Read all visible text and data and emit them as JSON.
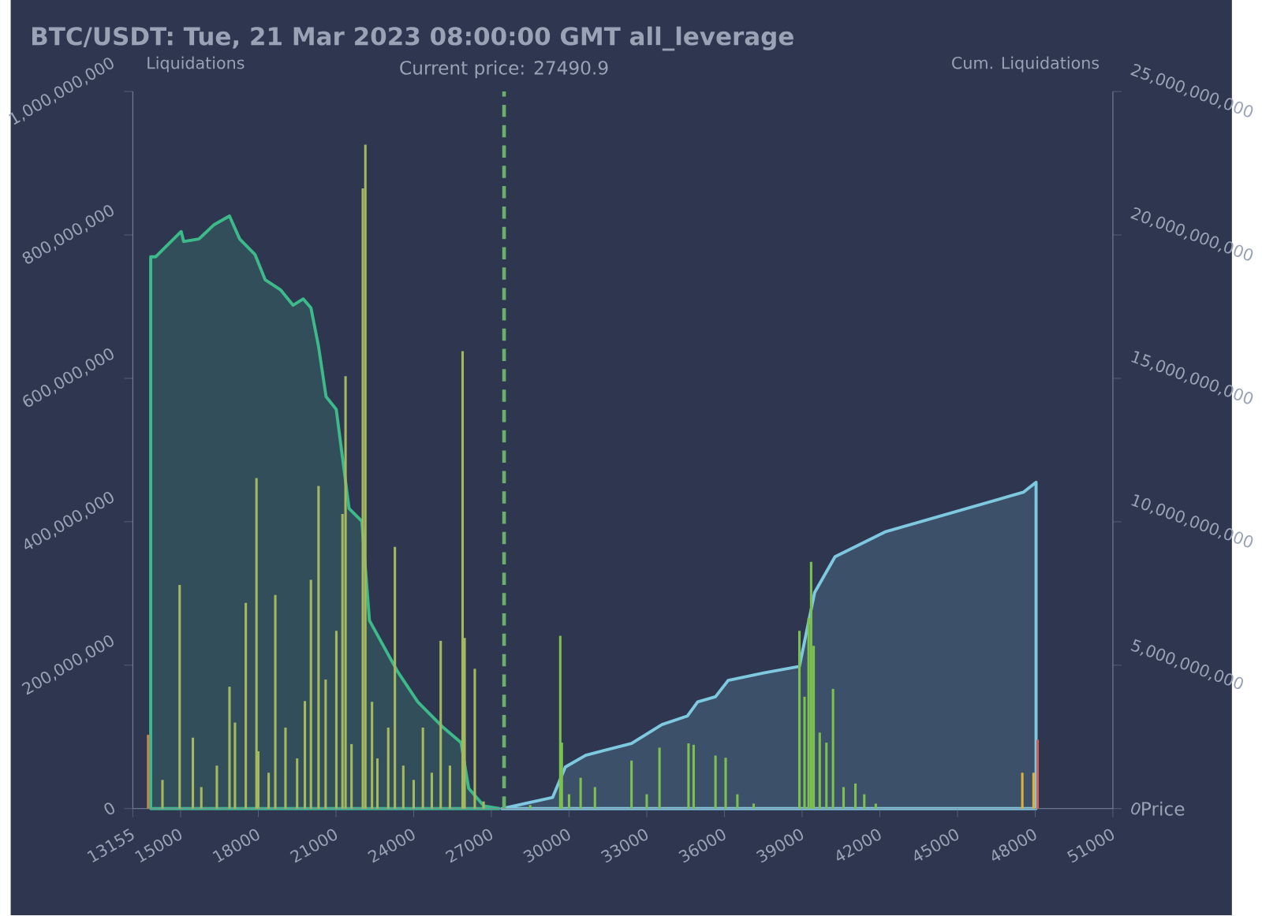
{
  "chart_data": {
    "type": "bar",
    "title": "BTC/USDT: Tue, 21 Mar 2023 08:00:00 GMT all_leverage",
    "xlabel": "Price",
    "ylabel": "Liquidations",
    "y2label": "Cum. Liquidations",
    "xlim": [
      13155,
      51000
    ],
    "xticks": [
      13155,
      15000,
      18000,
      21000,
      24000,
      27000,
      30000,
      33000,
      36000,
      39000,
      42000,
      45000,
      48000,
      51000
    ],
    "ylim": [
      0,
      1000000000
    ],
    "yticks": [
      0,
      {
        "value": 200000000,
        "label": "200,000,000"
      },
      {
        "value": 400000000,
        "label": "400,000,000"
      },
      {
        "value": 600000000,
        "label": "600,000,000"
      },
      {
        "value": 800000000,
        "label": "800,000,000"
      },
      {
        "value": 1000000000,
        "label": "1,000,000,000"
      }
    ],
    "y2lim": [
      0,
      25000000000
    ],
    "y2ticks": [
      0,
      {
        "value": 5000000000,
        "label": "5,000,000,000"
      },
      {
        "value": 10000000000,
        "label": "10,000,000,000"
      },
      {
        "value": 15000000000,
        "label": "15,000,000,000"
      },
      {
        "value": 20000000000,
        "label": "20,000,000,000"
      },
      {
        "value": 25000000000,
        "label": "25,000,000,000"
      }
    ],
    "ref_lines": [
      {
        "axis": "x",
        "value": 27490.9,
        "label": "Current price: 27490.9",
        "color": "#6ab06a",
        "line_style": "dashed"
      }
    ],
    "series": [
      {
        "type": "area",
        "axis": "y2",
        "color": "#3dba8a",
        "x": [
          13845,
          14039,
          15023,
          15120,
          15708,
          16297,
          16887,
          17281,
          17871,
          18264,
          18855,
          19345,
          19738,
          20032,
          20323,
          20618,
          21010,
          21506,
          21997,
          22292,
          23372,
          24158,
          25139,
          25829,
          26123,
          26713,
          27303
        ],
        "values": [
          19240000000,
          19240000000,
          20120000000,
          19770000000,
          19860000000,
          20360000000,
          20660000000,
          19860000000,
          19320000000,
          18440000000,
          18090000000,
          17550000000,
          17770000000,
          17460000000,
          16130000000,
          14360000000,
          13920000000,
          10460000000,
          10020000000,
          6560000000,
          4790000000,
          3720000000,
          2830000000,
          2300000000,
          710000000,
          90000000,
          0
        ]
      },
      {
        "type": "area",
        "axis": "y2",
        "color": "#7ec8e0",
        "x": [
          27402,
          29366,
          29857,
          30643,
          32411,
          33590,
          34573,
          34966,
          35654,
          36145,
          37520,
          38896,
          39485,
          40271,
          42236,
          47543,
          48034
        ],
        "values": [
          0,
          390000000,
          1450000000,
          1860000000,
          2270000000,
          2930000000,
          3230000000,
          3720000000,
          3900000000,
          4470000000,
          4730000000,
          4960000000,
          7540000000,
          8780000000,
          9660000000,
          11030000000,
          11380000000
        ]
      },
      {
        "x": [
          13745,
          14300,
          14963,
          15474,
          15800,
          16400,
          16889,
          17100,
          17517,
          17930,
          18000,
          18400,
          18657,
          19050,
          19500,
          19800,
          20033,
          20327,
          20600,
          21015,
          21251,
          21369,
          21600,
          22037,
          22135,
          22391,
          22600,
          23019,
          23275,
          23600,
          24000,
          24356,
          24700,
          25044,
          25400,
          25889,
          25967,
          26360,
          26700,
          28500,
          29661,
          29720,
          30000,
          30447,
          31000,
          32412,
          33000,
          33493,
          34613,
          34810,
          35655,
          36047,
          36500,
          37128,
          38896,
          39093,
          39250,
          39348,
          39446,
          39680,
          39938,
          40193,
          40600,
          41058,
          41400,
          41844,
          47503,
          47936,
          48093
        ],
        "values": [
          103000000,
          40000000,
          312000000,
          99000000,
          30000000,
          60000000,
          170000000,
          120000000,
          287000000,
          461000000,
          80000000,
          50000000,
          298000000,
          113000000,
          70000000,
          150000000,
          319000000,
          450000000,
          180000000,
          248000000,
          411000000,
          603000000,
          90000000,
          865000000,
          926000000,
          149000000,
          70000000,
          113000000,
          365000000,
          60000000,
          40000000,
          113000000,
          50000000,
          234000000,
          60000000,
          638000000,
          238000000,
          195000000,
          10000000,
          5000000,
          241000000,
          92000000,
          20000000,
          43000000,
          30000000,
          67000000,
          20000000,
          85000000,
          91000000,
          89000000,
          74000000,
          71000000,
          20000000,
          7000000,
          248000000,
          156000000,
          266000000,
          344000000,
          227000000,
          106000000,
          92000000,
          167000000,
          30000000,
          35000000,
          20000000,
          7000000,
          50000000,
          50000000,
          96000000
        ],
        "colors": [
          "#c9824c",
          "#a5b85e",
          "#a5b85e",
          "#a5b85e",
          "#a5b85e",
          "#a5b85e",
          "#a5b85e",
          "#a5b85e",
          "#a5b85e",
          "#a5b85e",
          "#a5b85e",
          "#a5b85e",
          "#a5b85e",
          "#a5b85e",
          "#a5b85e",
          "#a5b85e",
          "#a5b85e",
          "#a5b85e",
          "#a5b85e",
          "#a5b85e",
          "#a5b85e",
          "#a5b85e",
          "#a5b85e",
          "#a5b85e",
          "#a5b85e",
          "#a5b85e",
          "#a5b85e",
          "#a5b85e",
          "#a5b85e",
          "#a5b85e",
          "#a5b85e",
          "#a5b85e",
          "#a5b85e",
          "#a5b85e",
          "#a5b85e",
          "#a5b85e",
          "#a5b85e",
          "#a5b85e",
          "#a5b85e",
          "#7cc050",
          "#7cc050",
          "#7cc050",
          "#7cc050",
          "#7cc050",
          "#7cc050",
          "#7cc050",
          "#7cc050",
          "#7cc050",
          "#7cc050",
          "#7cc050",
          "#7cc050",
          "#7cc050",
          "#7cc050",
          "#7cc050",
          "#7cc050",
          "#7cc050",
          "#7cc050",
          "#7cc050",
          "#7cc050",
          "#7cc050",
          "#7cc050",
          "#7cc050",
          "#7cc050",
          "#7cc050",
          "#7cc050",
          "#7cc050",
          "#e0b03c",
          "#e0b03c",
          "#d0605a"
        ]
      }
    ]
  }
}
